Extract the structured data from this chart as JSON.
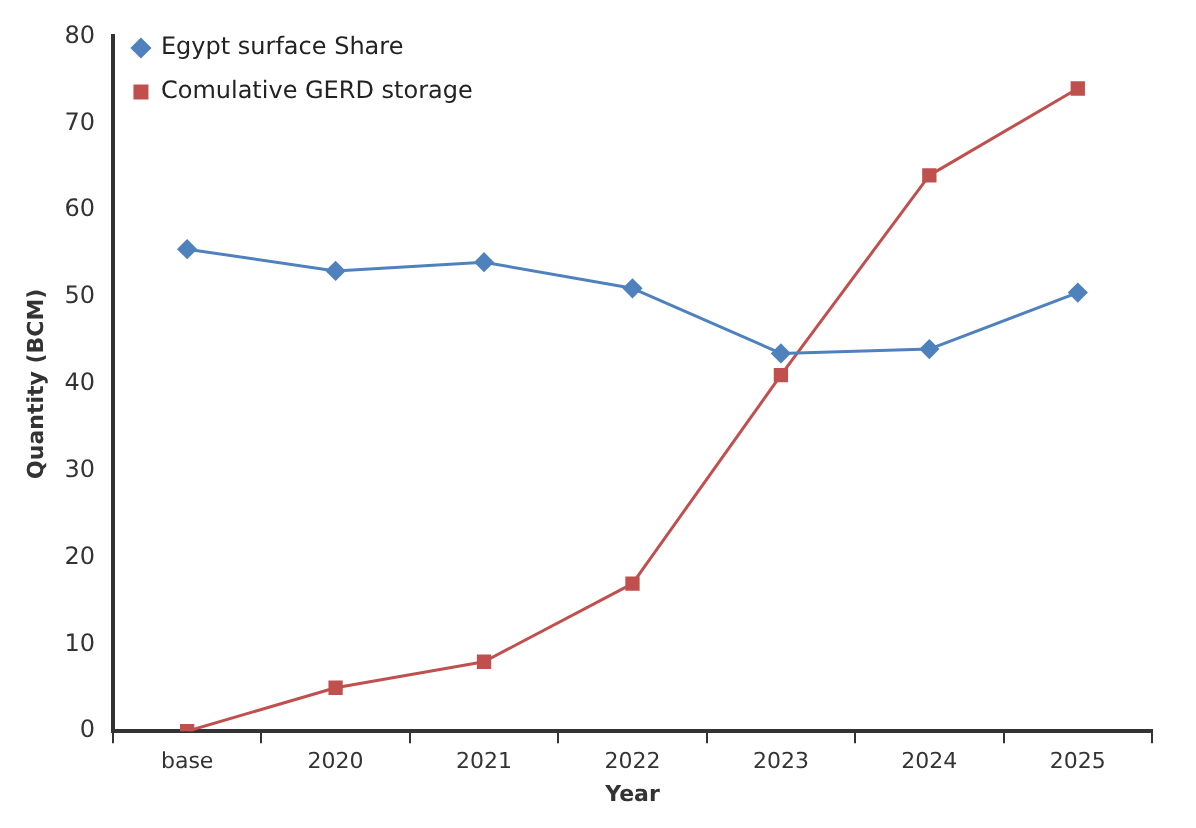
{
  "chart_data": {
    "type": "line",
    "xlabel": "Year",
    "ylabel": "Quantity (BCM)",
    "categories": [
      "base",
      "2020",
      "2021",
      "2022",
      "2023",
      "2024",
      "2025"
    ],
    "series": [
      {
        "name": "Egypt surface Share",
        "color": "#4f81bd",
        "marker": "diamond",
        "values": [
          55.5,
          53,
          54,
          51,
          43.5,
          44,
          50.5
        ]
      },
      {
        "name": "Comulative GERD storage",
        "color": "#c0504d",
        "marker": "square",
        "values": [
          0,
          5,
          8,
          17,
          41,
          64,
          74
        ]
      }
    ],
    "ylim": [
      0,
      80
    ],
    "yticks": [
      0,
      10,
      20,
      30,
      40,
      50,
      60,
      70,
      80
    ],
    "grid": false,
    "legend": "top left"
  }
}
